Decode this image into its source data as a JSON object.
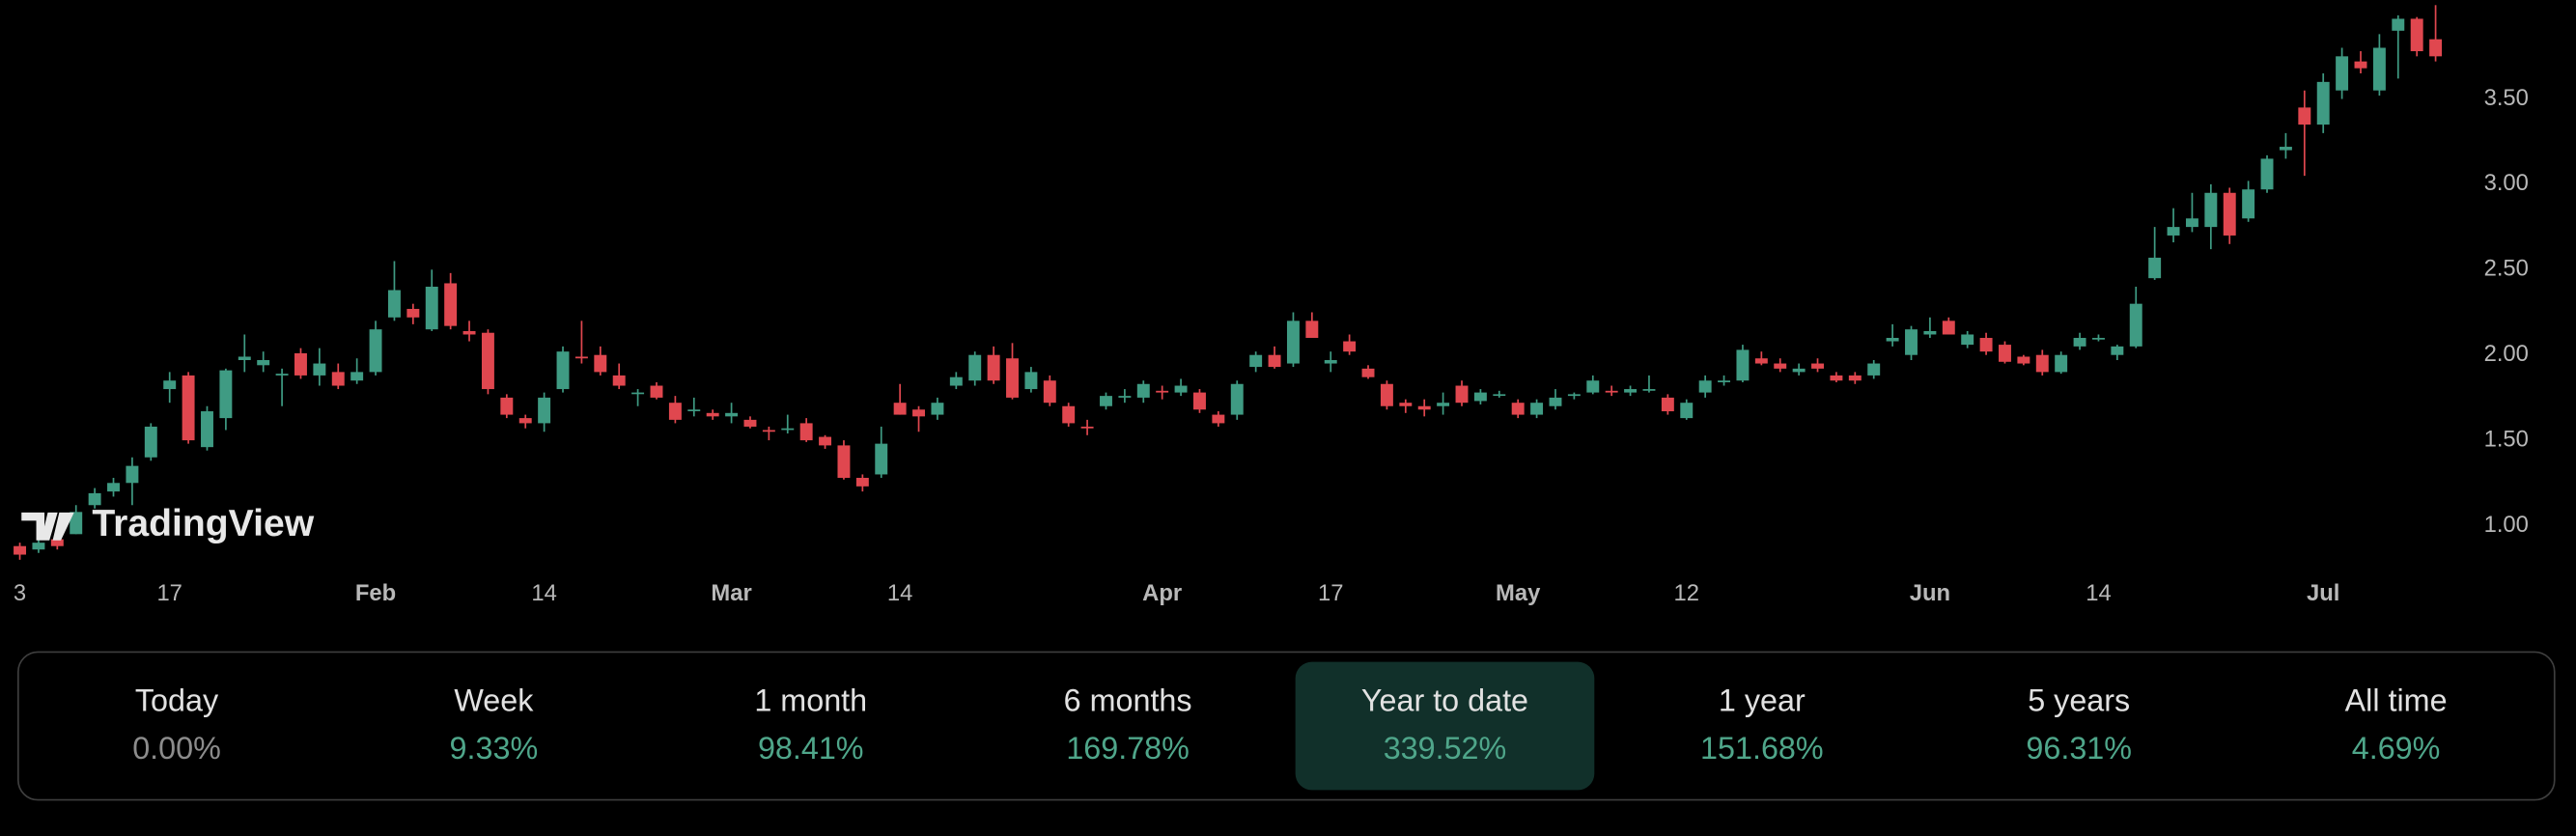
{
  "chart_data": {
    "type": "candlestick",
    "watermark": "TradingView",
    "up_color": "#3f9b83",
    "down_color": "#e0474f",
    "ylim": [
      0.75,
      4.08
    ],
    "yticks": [
      {
        "value": 1,
        "label": "1.00"
      },
      {
        "value": 1.5,
        "label": "1.50"
      },
      {
        "value": 2,
        "label": "2.00"
      },
      {
        "value": 2.5,
        "label": "2.50"
      },
      {
        "value": 3,
        "label": "3.00"
      },
      {
        "value": 3.5,
        "label": "3.50"
      }
    ],
    "categories": [
      "3",
      null,
      null,
      null,
      null,
      null,
      null,
      null,
      "17",
      null,
      null,
      null,
      null,
      null,
      null,
      null,
      null,
      null,
      null,
      "Feb",
      null,
      null,
      null,
      null,
      null,
      null,
      null,
      null,
      "14",
      null,
      null,
      null,
      null,
      null,
      null,
      null,
      null,
      null,
      "Mar",
      null,
      null,
      null,
      null,
      null,
      null,
      null,
      null,
      "14",
      null,
      null,
      null,
      null,
      null,
      null,
      null,
      null,
      null,
      null,
      null,
      null,
      null,
      "Apr",
      null,
      null,
      null,
      null,
      null,
      null,
      null,
      null,
      "17",
      null,
      null,
      null,
      null,
      null,
      null,
      null,
      null,
      null,
      "May",
      null,
      null,
      null,
      null,
      null,
      null,
      null,
      null,
      "12",
      null,
      null,
      null,
      null,
      null,
      null,
      null,
      null,
      null,
      null,
      null,
      null,
      "Jun",
      null,
      null,
      null,
      null,
      null,
      null,
      null,
      null,
      "14",
      null,
      null,
      null,
      null,
      null,
      null,
      null,
      null,
      null,
      null,
      null,
      "Jul",
      null,
      null,
      null,
      null,
      null,
      null
    ],
    "open": [
      0.88,
      0.86,
      0.92,
      0.95,
      1.12,
      1.2,
      1.25,
      1.4,
      1.8,
      1.88,
      1.46,
      1.63,
      1.97,
      1.94,
      1.88,
      2.01,
      1.88,
      1.9,
      1.85,
      1.9,
      2.22,
      2.27,
      2.15,
      2.42,
      2.14,
      2.13,
      1.75,
      1.63,
      1.6,
      1.8,
      1.99,
      2.0,
      1.88,
      1.78,
      1.82,
      1.72,
      1.68,
      1.66,
      1.64,
      1.62,
      1.56,
      1.57,
      1.6,
      1.52,
      1.47,
      1.28,
      1.3,
      1.72,
      1.68,
      1.65,
      1.82,
      1.85,
      2.0,
      1.98,
      1.8,
      1.85,
      1.7,
      1.58,
      1.7,
      1.75,
      1.75,
      1.79,
      1.78,
      1.78,
      1.65,
      1.65,
      1.93,
      2.0,
      1.95,
      2.2,
      1.95,
      2.08,
      1.92,
      1.83,
      1.72,
      1.7,
      1.7,
      1.82,
      1.73,
      1.77,
      1.72,
      1.65,
      1.7,
      1.76,
      1.78,
      1.79,
      1.78,
      1.8,
      1.75,
      1.63,
      1.78,
      1.84,
      1.85,
      1.98,
      1.95,
      1.9,
      1.95,
      1.88,
      1.88,
      1.88,
      2.08,
      2.0,
      2.12,
      2.2,
      2.06,
      2.1,
      2.06,
      1.99,
      2.0,
      1.9,
      2.05,
      2.1,
      2.0,
      2.05,
      2.45,
      2.7,
      2.75,
      2.75,
      2.95,
      2.8,
      2.97,
      3.2,
      3.45,
      3.35,
      3.55,
      3.72,
      3.55,
      3.9,
      3.97,
      3.85
    ],
    "high": [
      0.9,
      0.92,
      0.95,
      1.12,
      1.22,
      1.28,
      1.4,
      1.6,
      1.9,
      1.9,
      1.7,
      1.92,
      2.12,
      2.02,
      1.92,
      2.04,
      2.04,
      1.95,
      1.98,
      2.2,
      2.55,
      2.3,
      2.5,
      2.48,
      2.2,
      2.15,
      1.77,
      1.65,
      1.78,
      2.05,
      2.2,
      2.05,
      1.95,
      1.8,
      1.84,
      1.76,
      1.75,
      1.68,
      1.72,
      1.64,
      1.58,
      1.65,
      1.63,
      1.53,
      1.5,
      1.3,
      1.58,
      1.83,
      1.7,
      1.75,
      1.9,
      2.02,
      2.05,
      2.07,
      1.93,
      1.88,
      1.72,
      1.62,
      1.78,
      1.8,
      1.85,
      1.82,
      1.86,
      1.8,
      1.67,
      1.85,
      2.02,
      2.05,
      2.25,
      2.25,
      2.02,
      2.12,
      1.94,
      1.85,
      1.74,
      1.74,
      1.78,
      1.85,
      1.8,
      1.79,
      1.74,
      1.74,
      1.8,
      1.78,
      1.88,
      1.82,
      1.82,
      1.88,
      1.77,
      1.74,
      1.88,
      1.88,
      2.06,
      2.02,
      1.98,
      1.95,
      1.98,
      1.9,
      1.9,
      1.97,
      2.18,
      2.17,
      2.22,
      2.22,
      2.14,
      2.13,
      2.08,
      2.0,
      2.03,
      2.02,
      2.13,
      2.12,
      2.06,
      2.4,
      2.75,
      2.86,
      2.95,
      3.0,
      2.98,
      3.02,
      3.17,
      3.3,
      3.55,
      3.65,
      3.8,
      3.78,
      3.88,
      3.99,
      3.98,
      4.05
    ],
    "low": [
      0.8,
      0.84,
      0.86,
      0.95,
      1.1,
      1.17,
      1.12,
      1.38,
      1.72,
      1.48,
      1.44,
      1.56,
      1.9,
      1.9,
      1.7,
      1.86,
      1.82,
      1.8,
      1.83,
      1.88,
      2.2,
      2.18,
      2.14,
      2.15,
      2.08,
      1.77,
      1.63,
      1.57,
      1.55,
      1.78,
      1.95,
      1.88,
      1.8,
      1.7,
      1.74,
      1.6,
      1.64,
      1.62,
      1.6,
      1.57,
      1.5,
      1.54,
      1.49,
      1.45,
      1.27,
      1.2,
      1.28,
      1.65,
      1.55,
      1.62,
      1.8,
      1.82,
      1.83,
      1.74,
      1.78,
      1.7,
      1.58,
      1.53,
      1.68,
      1.72,
      1.72,
      1.74,
      1.76,
      1.66,
      1.58,
      1.62,
      1.9,
      1.92,
      1.93,
      2.1,
      1.9,
      2.0,
      1.86,
      1.68,
      1.66,
      1.64,
      1.65,
      1.7,
      1.71,
      1.75,
      1.63,
      1.63,
      1.68,
      1.74,
      1.77,
      1.76,
      1.76,
      1.78,
      1.65,
      1.62,
      1.75,
      1.82,
      1.84,
      1.94,
      1.9,
      1.88,
      1.9,
      1.84,
      1.83,
      1.86,
      2.05,
      1.97,
      2.1,
      2.12,
      2.04,
      2.0,
      1.95,
      1.94,
      1.88,
      1.89,
      2.03,
      2.08,
      1.97,
      2.04,
      2.44,
      2.66,
      2.72,
      2.62,
      2.65,
      2.78,
      2.95,
      3.15,
      3.05,
      3.3,
      3.5,
      3.65,
      3.52,
      3.62,
      3.75,
      3.72
    ],
    "close": [
      0.83,
      0.9,
      0.88,
      1.08,
      1.19,
      1.25,
      1.35,
      1.58,
      1.85,
      1.5,
      1.67,
      1.91,
      1.99,
      1.97,
      1.89,
      1.88,
      1.95,
      1.82,
      1.9,
      2.15,
      2.38,
      2.22,
      2.4,
      2.17,
      2.12,
      1.8,
      1.65,
      1.6,
      1.75,
      2.02,
      1.98,
      1.9,
      1.82,
      1.78,
      1.75,
      1.62,
      1.68,
      1.64,
      1.66,
      1.58,
      1.55,
      1.57,
      1.5,
      1.47,
      1.28,
      1.23,
      1.48,
      1.65,
      1.64,
      1.72,
      1.87,
      2.0,
      1.85,
      1.75,
      1.9,
      1.72,
      1.6,
      1.57,
      1.76,
      1.76,
      1.83,
      1.78,
      1.82,
      1.68,
      1.6,
      1.83,
      2.0,
      1.93,
      2.2,
      2.1,
      1.97,
      2.02,
      1.87,
      1.7,
      1.7,
      1.68,
      1.72,
      1.72,
      1.78,
      1.77,
      1.65,
      1.72,
      1.75,
      1.77,
      1.85,
      1.78,
      1.8,
      1.8,
      1.67,
      1.72,
      1.85,
      1.85,
      2.03,
      1.95,
      1.92,
      1.92,
      1.92,
      1.85,
      1.85,
      1.95,
      2.1,
      2.15,
      2.14,
      2.12,
      2.12,
      2.02,
      1.96,
      1.95,
      1.9,
      2.0,
      2.1,
      2.1,
      2.05,
      2.3,
      2.57,
      2.75,
      2.8,
      2.95,
      2.7,
      2.97,
      3.15,
      3.22,
      3.35,
      3.6,
      3.75,
      3.68,
      3.8,
      3.97,
      3.78,
      3.75
    ]
  },
  "periods": [
    {
      "label": "Today",
      "value": "0.00%",
      "color": "#8c8c8c"
    },
    {
      "label": "Week",
      "value": "9.33%",
      "color": "#4fa68a"
    },
    {
      "label": "1 month",
      "value": "98.41%",
      "color": "#4fa68a"
    },
    {
      "label": "6 months",
      "value": "169.78%",
      "color": "#4fa68a"
    },
    {
      "label": "Year to date",
      "value": "339.52%",
      "color": "#4fa68a"
    },
    {
      "label": "1 year",
      "value": "151.68%",
      "color": "#4fa68a"
    },
    {
      "label": "5 years",
      "value": "96.31%",
      "color": "#4fa68a"
    },
    {
      "label": "All time",
      "value": "4.69%",
      "color": "#4fa68a"
    }
  ],
  "selected_period": 4
}
